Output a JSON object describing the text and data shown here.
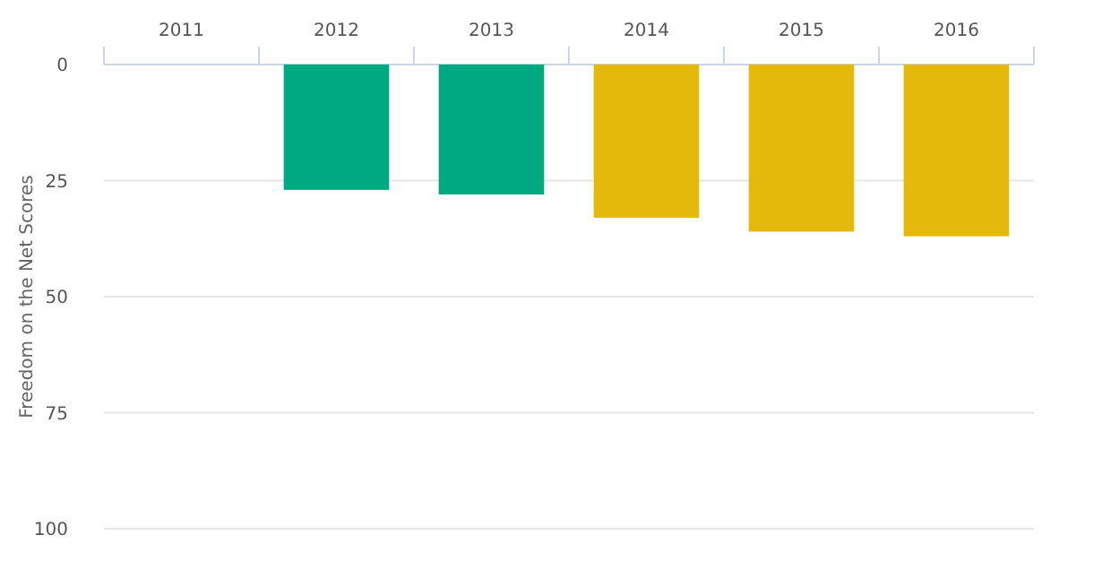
{
  "chart_data": {
    "type": "bar",
    "ylabel": "Freedom on the Net Scores",
    "categories": [
      "2011",
      "2012",
      "2013",
      "2014",
      "2015",
      "2016"
    ],
    "values": [
      null,
      27,
      28,
      33,
      36,
      37
    ],
    "colors": [
      null,
      "#00a982",
      "#00a982",
      "#e5b90b",
      "#e5b90b",
      "#e5b90b"
    ],
    "ylim": [
      100,
      0
    ],
    "yticks": [
      0,
      25,
      50,
      75,
      100
    ],
    "grid": "y"
  }
}
